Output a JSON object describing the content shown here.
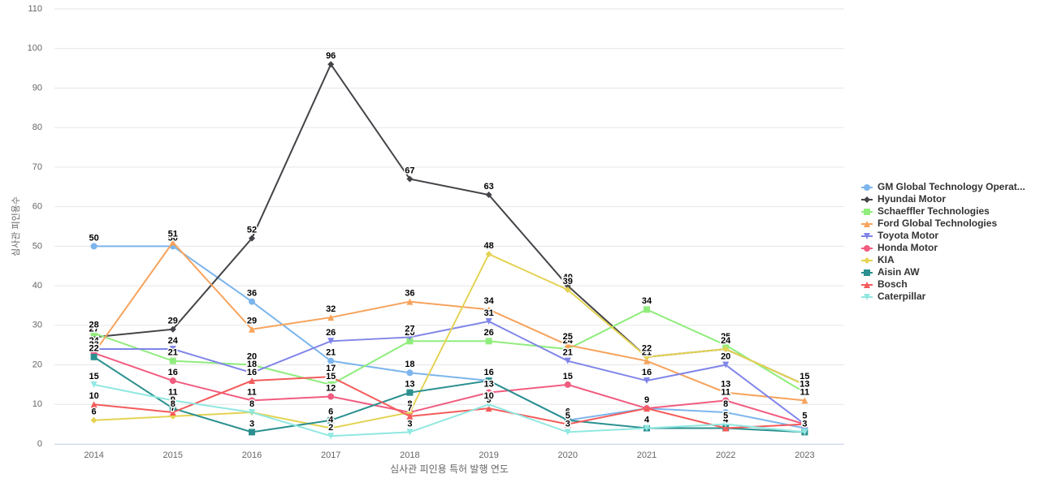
{
  "chart_data": {
    "type": "line",
    "x_label": "심사관 피인용 특허 발행 연도",
    "y_label": "심사관 피인용수",
    "categories": [
      "2014",
      "2015",
      "2016",
      "2017",
      "2018",
      "2019",
      "2020",
      "2021",
      "2022",
      "2023"
    ],
    "ylim": [
      0,
      110
    ],
    "yticks": [
      0,
      10,
      20,
      30,
      40,
      50,
      60,
      70,
      80,
      90,
      100,
      110
    ],
    "grid": true,
    "legend": "right",
    "series": [
      {
        "name": "GM Global Technology Operat...",
        "color": "#7cb5ec",
        "marker": "circle",
        "values": [
          50,
          50,
          36,
          21,
          18,
          16,
          6,
          9,
          8,
          4
        ]
      },
      {
        "name": "Hyundai Motor",
        "color": "#434348",
        "marker": "diamond",
        "values": [
          27,
          29,
          52,
          96,
          67,
          63,
          40,
          22,
          24,
          15
        ]
      },
      {
        "name": "Schaeffler Technologies",
        "color": "#90ed7d",
        "marker": "square",
        "values": [
          28,
          21,
          20,
          15,
          26,
          26,
          24,
          34,
          25,
          13
        ]
      },
      {
        "name": "Ford Global Technologies",
        "color": "#f7a35c",
        "marker": "triangle",
        "values": [
          23,
          51,
          29,
          32,
          36,
          34,
          25,
          21,
          13,
          11
        ]
      },
      {
        "name": "Toyota Motor",
        "color": "#8085e9",
        "marker": "triangle-down",
        "values": [
          24,
          24,
          18,
          26,
          27,
          31,
          21,
          16,
          20,
          5
        ]
      },
      {
        "name": "Honda Motor",
        "color": "#f15c80",
        "marker": "circle",
        "values": [
          23,
          16,
          11,
          12,
          8,
          13,
          15,
          9,
          11,
          5
        ]
      },
      {
        "name": "KIA",
        "color": "#e4d354",
        "marker": "diamond",
        "values": [
          6,
          7,
          8,
          4,
          8,
          48,
          39,
          22,
          24,
          15
        ]
      },
      {
        "name": "Aisin AW",
        "color": "#2b908f",
        "marker": "square",
        "values": [
          22,
          9,
          3,
          6,
          13,
          16,
          6,
          4,
          4,
          3
        ]
      },
      {
        "name": "Bosch",
        "color": "#f45b5b",
        "marker": "triangle",
        "values": [
          10,
          8,
          16,
          17,
          7,
          9,
          5,
          9,
          4,
          5
        ]
      },
      {
        "name": "Caterpillar",
        "color": "#91e8e1",
        "marker": "triangle-down",
        "values": [
          15,
          11,
          8,
          2,
          3,
          10,
          3,
          4,
          5,
          3
        ]
      }
    ]
  }
}
